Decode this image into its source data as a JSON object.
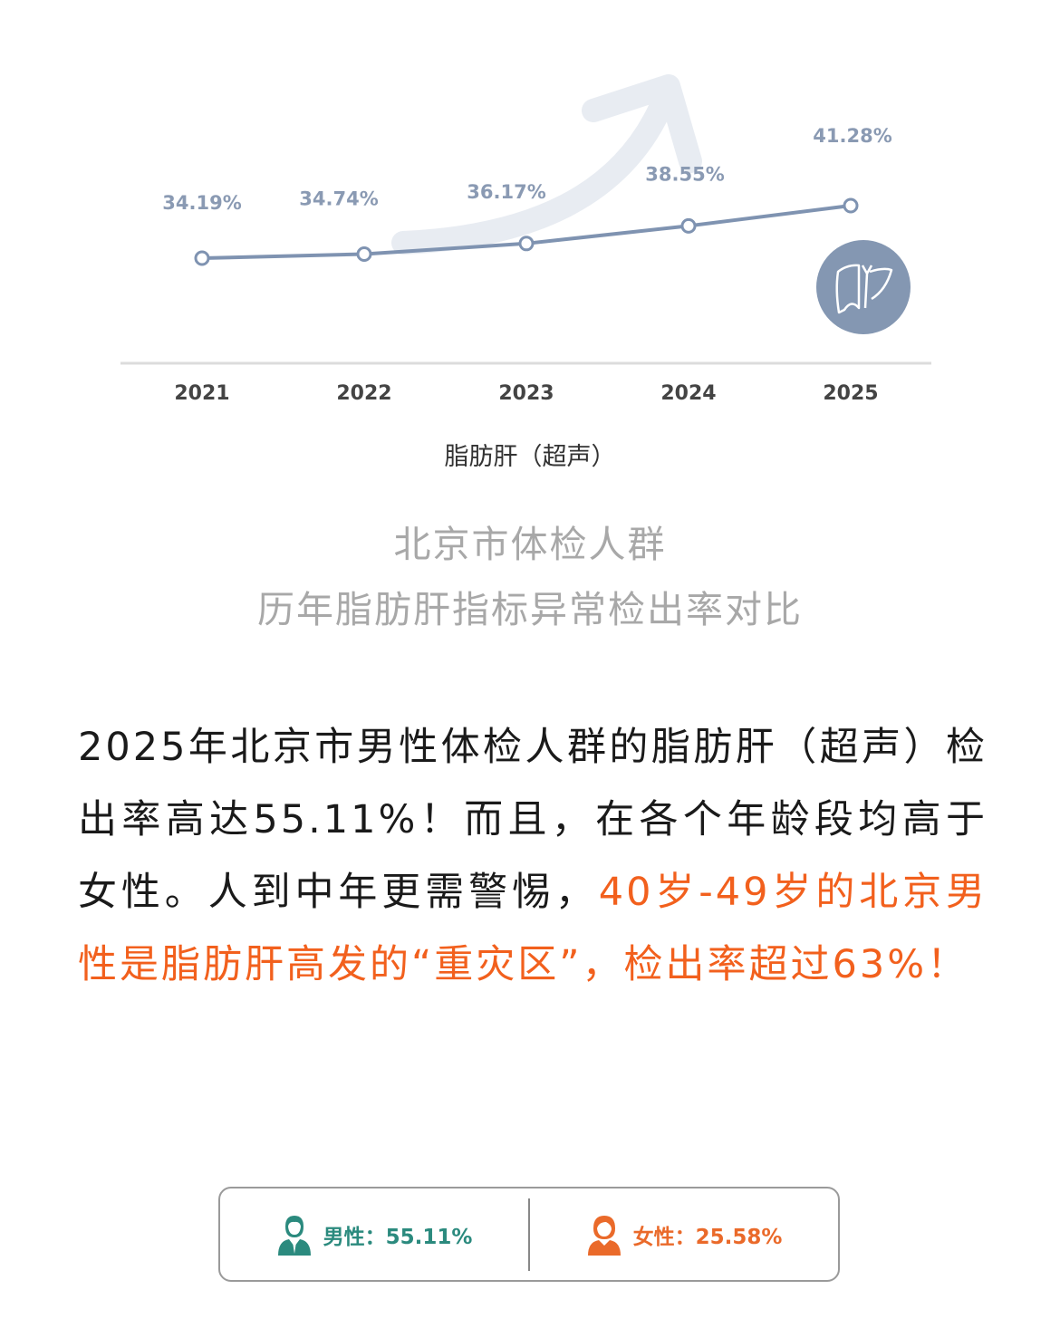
{
  "chart_data": {
    "type": "line",
    "categories": [
      "2021",
      "2022",
      "2023",
      "2024",
      "2025"
    ],
    "values": [
      34.19,
      34.74,
      36.17,
      38.55,
      41.28
    ],
    "data_labels": [
      "34.19%",
      "34.74%",
      "36.17%",
      "38.55%",
      "41.28%"
    ],
    "xlabel": "脂肪肝（超声）",
    "grid": false,
    "colors": {
      "line": "#7f93b1",
      "arrow": "#e8ecf2",
      "icon_bg": "#8497b2"
    }
  },
  "icons": {
    "chart_decoration": "liver-icon",
    "male": "man-avatar-icon",
    "female": "woman-avatar-icon"
  },
  "subtitle": {
    "line1": "北京市体检人群",
    "line2": "历年脂肪肝指标异常检出率对比"
  },
  "paragraph": {
    "normal": "2025年北京市男性体检人群的脂肪肝（超声）检出率高达55.11%！而且，在各个年龄段均高于女性。人到中年更需警惕，",
    "highlight": "40岁-49岁的北京男性是脂肪肝高发的“重灾区”，检出率超过63%！",
    "highlight_color": "#f2601d"
  },
  "stats": {
    "male": {
      "label": "男性：55.11%",
      "color": "#2b8a7e"
    },
    "female": {
      "label": "女性：25.58%",
      "color": "#ea6a2a"
    }
  }
}
